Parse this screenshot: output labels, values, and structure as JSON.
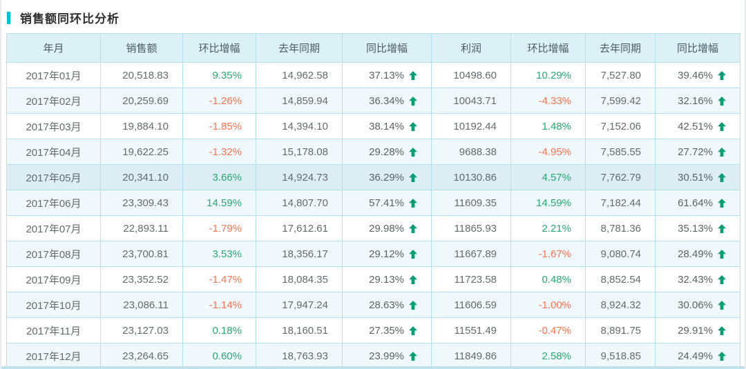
{
  "page": {
    "title": "销售额同环比分析"
  },
  "colors": {
    "accent": "#00c0d4",
    "positive": "#2aa771",
    "negative": "#fb7350",
    "arrow": "#0a9e74",
    "header_bg": "#dcf1f6",
    "border": "#b2e0ec",
    "highlight_row_bg": "#dcedf4"
  },
  "icons": {
    "up_arrow": "⬆"
  },
  "table": {
    "headers": [
      "年月",
      "销售额",
      "环比增幅",
      "去年同期",
      "同比增幅",
      "利润",
      "环比增幅",
      "去年同期",
      "同比增幅"
    ],
    "highlighted_month": "2017年05月",
    "rows": [
      {
        "month": "2017年01月",
        "sales": "20,518.83",
        "sales_mom": "9.35%",
        "sales_ly": "14,962.58",
        "sales_yoy": "37.13%",
        "profit": "10498.60",
        "profit_mom": "10.29%",
        "profit_ly": "7,527.80",
        "profit_yoy": "39.46%"
      },
      {
        "month": "2017年02月",
        "sales": "20,259.69",
        "sales_mom": "-1.26%",
        "sales_ly": "14,859.94",
        "sales_yoy": "36.34%",
        "profit": "10043.71",
        "profit_mom": "-4.33%",
        "profit_ly": "7,599.42",
        "profit_yoy": "32.16%"
      },
      {
        "month": "2017年03月",
        "sales": "19,884.10",
        "sales_mom": "-1.85%",
        "sales_ly": "14,394.10",
        "sales_yoy": "38.14%",
        "profit": "10192.44",
        "profit_mom": "1.48%",
        "profit_ly": "7,152.06",
        "profit_yoy": "42.51%"
      },
      {
        "month": "2017年04月",
        "sales": "19,622.25",
        "sales_mom": "-1.32%",
        "sales_ly": "15,178.08",
        "sales_yoy": "29.28%",
        "profit": "9688.38",
        "profit_mom": "-4.95%",
        "profit_ly": "7,585.55",
        "profit_yoy": "27.72%"
      },
      {
        "month": "2017年05月",
        "sales": "20,341.10",
        "sales_mom": "3.66%",
        "sales_ly": "14,924.73",
        "sales_yoy": "36.29%",
        "profit": "10130.86",
        "profit_mom": "4.57%",
        "profit_ly": "7,762.79",
        "profit_yoy": "30.51%"
      },
      {
        "month": "2017年06月",
        "sales": "23,309.43",
        "sales_mom": "14.59%",
        "sales_ly": "14,807.70",
        "sales_yoy": "57.41%",
        "profit": "11609.35",
        "profit_mom": "14.59%",
        "profit_ly": "7,182.44",
        "profit_yoy": "61.64%"
      },
      {
        "month": "2017年07月",
        "sales": "22,893.11",
        "sales_mom": "-1.79%",
        "sales_ly": "17,612.61",
        "sales_yoy": "29.98%",
        "profit": "11865.93",
        "profit_mom": "2.21%",
        "profit_ly": "8,781.36",
        "profit_yoy": "35.13%"
      },
      {
        "month": "2017年08月",
        "sales": "23,700.81",
        "sales_mom": "3.53%",
        "sales_ly": "18,356.17",
        "sales_yoy": "29.12%",
        "profit": "11667.89",
        "profit_mom": "-1.67%",
        "profit_ly": "9,080.74",
        "profit_yoy": "28.49%"
      },
      {
        "month": "2017年09月",
        "sales": "23,352.52",
        "sales_mom": "-1.47%",
        "sales_ly": "18,084.35",
        "sales_yoy": "29.13%",
        "profit": "11723.58",
        "profit_mom": "0.48%",
        "profit_ly": "8,852.54",
        "profit_yoy": "32.43%"
      },
      {
        "month": "2017年10月",
        "sales": "23,086.11",
        "sales_mom": "-1.14%",
        "sales_ly": "17,947.24",
        "sales_yoy": "28.63%",
        "profit": "11606.59",
        "profit_mom": "-1.00%",
        "profit_ly": "8,924.32",
        "profit_yoy": "30.06%"
      },
      {
        "month": "2017年11月",
        "sales": "23,127.03",
        "sales_mom": "0.18%",
        "sales_ly": "18,160.51",
        "sales_yoy": "27.35%",
        "profit": "11551.49",
        "profit_mom": "-0.47%",
        "profit_ly": "8,891.75",
        "profit_yoy": "29.91%"
      },
      {
        "month": "2017年12月",
        "sales": "23,264.65",
        "sales_mom": "0.60%",
        "sales_ly": "18,763.93",
        "sales_yoy": "23.99%",
        "profit": "11849.86",
        "profit_mom": "2.58%",
        "profit_ly": "9,518.85",
        "profit_yoy": "24.49%"
      }
    ]
  }
}
